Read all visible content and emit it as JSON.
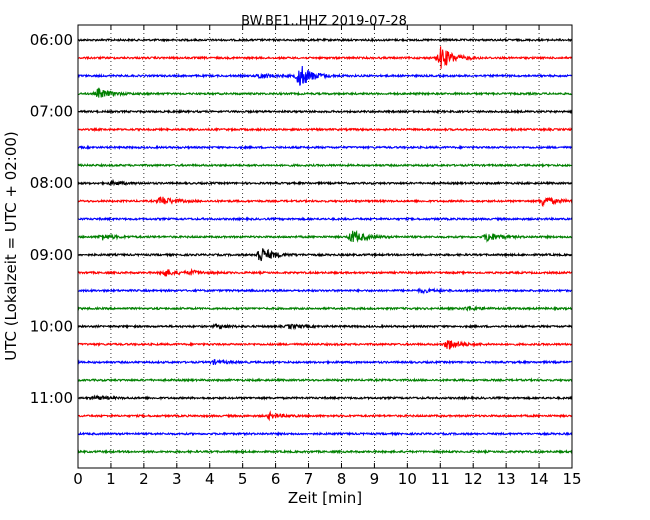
{
  "chart_data": {
    "type": "line",
    "title": "BW.BE1..HHZ 2019-07-28",
    "xlabel": "Zeit  [min]",
    "ylabel": "UTC (Lokalzeit = UTC + 02:00)",
    "xlim": [
      0,
      15
    ],
    "x_ticks": [
      "0",
      "1",
      "2",
      "3",
      "4",
      "5",
      "6",
      "7",
      "8",
      "9",
      "10",
      "11",
      "12",
      "13",
      "14",
      "15"
    ],
    "y_ticks": [
      "06:00",
      "07:00",
      "08:00",
      "09:00",
      "10:00",
      "11:00"
    ],
    "grid": "vertical dotted",
    "trace_interval_min": 15,
    "trace_colors": [
      "#000000",
      "#ff0000",
      "#0000ff",
      "#008000"
    ],
    "traces": [
      {
        "start": "06:00",
        "color": "#000000",
        "events": []
      },
      {
        "start": "06:15",
        "color": "#ff0000",
        "events": [
          {
            "t": 11.0,
            "amp": 12
          }
        ]
      },
      {
        "start": "06:30",
        "color": "#0000ff",
        "events": [
          {
            "t": 6.7,
            "amp": 13
          },
          {
            "t": 5.5,
            "amp": 3
          }
        ]
      },
      {
        "start": "06:45",
        "color": "#008000",
        "events": [
          {
            "t": 0.6,
            "amp": 5
          }
        ]
      },
      {
        "start": "07:00",
        "color": "#000000",
        "events": []
      },
      {
        "start": "07:15",
        "color": "#ff0000",
        "events": []
      },
      {
        "start": "07:30",
        "color": "#0000ff",
        "events": []
      },
      {
        "start": "07:45",
        "color": "#008000",
        "events": []
      },
      {
        "start": "08:00",
        "color": "#000000",
        "events": [
          {
            "t": 1.0,
            "amp": 2
          }
        ]
      },
      {
        "start": "08:15",
        "color": "#ff0000",
        "events": [
          {
            "t": 2.5,
            "amp": 5
          },
          {
            "t": 14.1,
            "amp": 5
          }
        ]
      },
      {
        "start": "08:30",
        "color": "#0000ff",
        "events": []
      },
      {
        "start": "08:45",
        "color": "#008000",
        "events": [
          {
            "t": 8.3,
            "amp": 7
          },
          {
            "t": 12.4,
            "amp": 5
          },
          {
            "t": 0.7,
            "amp": 3
          }
        ]
      },
      {
        "start": "09:00",
        "color": "#000000",
        "events": [
          {
            "t": 5.5,
            "amp": 9
          }
        ]
      },
      {
        "start": "09:15",
        "color": "#ff0000",
        "events": [
          {
            "t": 2.6,
            "amp": 4
          },
          {
            "t": 3.4,
            "amp": 2
          }
        ]
      },
      {
        "start": "09:30",
        "color": "#0000ff",
        "events": [
          {
            "t": 10.4,
            "amp": 2
          }
        ]
      },
      {
        "start": "09:45",
        "color": "#008000",
        "events": [
          {
            "t": 11.8,
            "amp": 2
          }
        ]
      },
      {
        "start": "10:00",
        "color": "#000000",
        "events": [
          {
            "t": 6.4,
            "amp": 2
          },
          {
            "t": 4.2,
            "amp": 2
          }
        ]
      },
      {
        "start": "10:15",
        "color": "#ff0000",
        "events": [
          {
            "t": 11.2,
            "amp": 6
          }
        ]
      },
      {
        "start": "10:30",
        "color": "#0000ff",
        "events": [
          {
            "t": 4.1,
            "amp": 2
          }
        ]
      },
      {
        "start": "10:45",
        "color": "#008000",
        "events": []
      },
      {
        "start": "11:00",
        "color": "#000000",
        "events": [
          {
            "t": 0.5,
            "amp": 2
          }
        ]
      },
      {
        "start": "11:15",
        "color": "#ff0000",
        "events": [
          {
            "t": 5.8,
            "amp": 3
          }
        ]
      },
      {
        "start": "11:30",
        "color": "#0000ff",
        "events": []
      },
      {
        "start": "11:45",
        "color": "#008000",
        "events": []
      }
    ]
  }
}
